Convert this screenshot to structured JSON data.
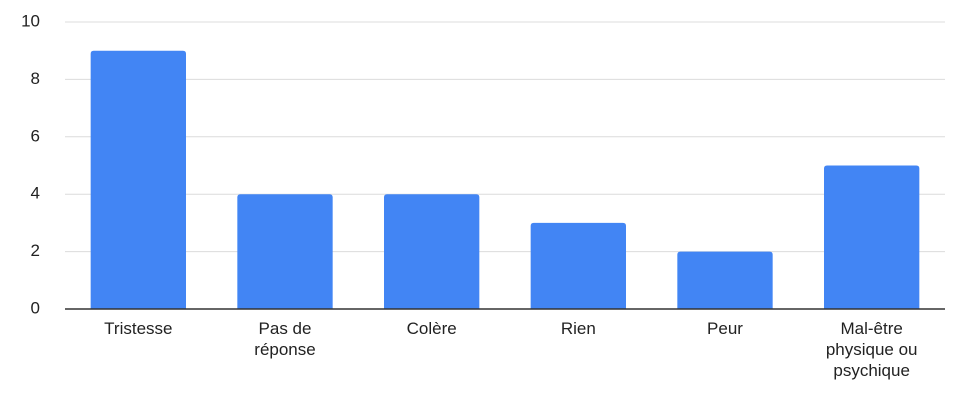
{
  "chart_data": {
    "type": "bar",
    "categories": [
      "Tristesse",
      "Pas de réponse",
      "Colère",
      "Rien",
      "Peur",
      "Mal-être physique ou psychique"
    ],
    "values": [
      9,
      4,
      4,
      3,
      2,
      5
    ],
    "color": "#4285f4",
    "ylim": [
      0,
      10
    ],
    "yticks": [
      0,
      2,
      4,
      6,
      8,
      10
    ],
    "grid": true
  }
}
